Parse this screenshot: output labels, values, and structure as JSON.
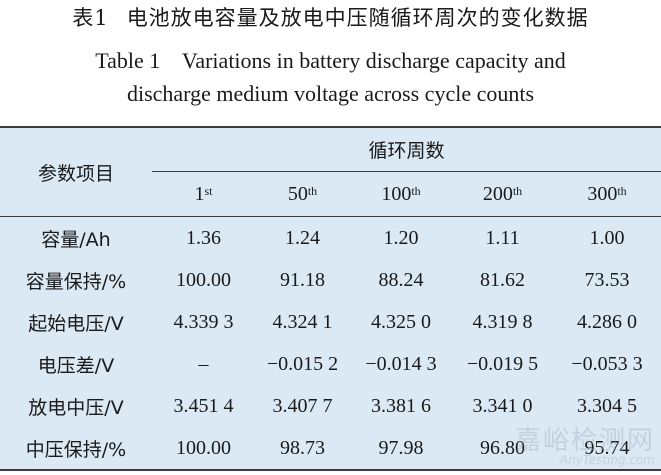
{
  "title_cn": {
    "label": "表1",
    "text": "电池放电容量及放电中压随循环周次的变化数据"
  },
  "title_en": {
    "line1": "Table 1    Variations in battery discharge capacity and",
    "line2": "discharge medium voltage across cycle counts"
  },
  "table": {
    "param_header": "参数项目",
    "group_header": "循环周数",
    "columns": [
      {
        "num": "1",
        "sup": "st"
      },
      {
        "num": "50",
        "sup": "th"
      },
      {
        "num": "100",
        "sup": "th"
      },
      {
        "num": "200",
        "sup": "th"
      },
      {
        "num": "300",
        "sup": "th"
      }
    ],
    "rows": [
      {
        "label": "容量/Ah",
        "values": [
          "1.36",
          "1.24",
          "1.20",
          "1.11",
          "1.00"
        ]
      },
      {
        "label": "容量保持/%",
        "values": [
          "100.00",
          "91.18",
          "88.24",
          "81.62",
          "73.53"
        ]
      },
      {
        "label": "起始电压/V",
        "values": [
          "4.339 3",
          "4.324 1",
          "4.325 0",
          "4.319 8",
          "4.286 0"
        ]
      },
      {
        "label": "电压差/V",
        "values": [
          "–",
          "−0.015 2",
          "−0.014 3",
          "−0.019 5",
          "−0.053 3"
        ]
      },
      {
        "label": "放电中压/V",
        "values": [
          "3.451 4",
          "3.407 7",
          "3.381 6",
          "3.341 0",
          "3.304 5"
        ]
      },
      {
        "label": "中压保持/%",
        "values": [
          "100.00",
          "98.73",
          "97.98",
          "96.80",
          "95.74"
        ]
      }
    ]
  },
  "watermark": {
    "cn": "嘉峪检测网",
    "en": "AnyTesting.com"
  }
}
